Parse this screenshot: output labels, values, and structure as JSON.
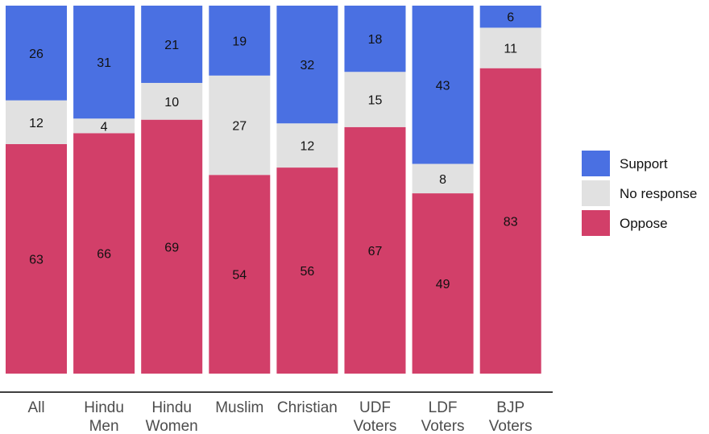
{
  "chart_data": {
    "type": "bar",
    "stacked": true,
    "percent": true,
    "categories": [
      [
        "All"
      ],
      [
        "Hindu",
        "Men"
      ],
      [
        "Hindu",
        "Women"
      ],
      [
        "Muslim"
      ],
      [
        "Christian"
      ],
      [
        "UDF",
        "Voters"
      ],
      [
        "LDF",
        "Voters"
      ],
      [
        "BJP",
        "Voters"
      ]
    ],
    "series": [
      {
        "name": "Oppose",
        "color": "#D23F69",
        "values": [
          63,
          66,
          69,
          54,
          56,
          67,
          49,
          83
        ]
      },
      {
        "name": "No response",
        "color": "#E1E1E1",
        "values": [
          12,
          4,
          10,
          27,
          12,
          15,
          8,
          11
        ]
      },
      {
        "name": "Support",
        "color": "#4A70E2",
        "values": [
          26,
          31,
          21,
          19,
          32,
          18,
          43,
          6
        ]
      }
    ],
    "legend": {
      "position": "right",
      "items": [
        {
          "name": "Support",
          "color": "#4A70E2"
        },
        {
          "name": "No response",
          "color": "#E1E1E1"
        },
        {
          "name": "Oppose",
          "color": "#D23F69"
        }
      ]
    },
    "title": "",
    "xlabel": "",
    "ylabel": "",
    "grid": false
  }
}
